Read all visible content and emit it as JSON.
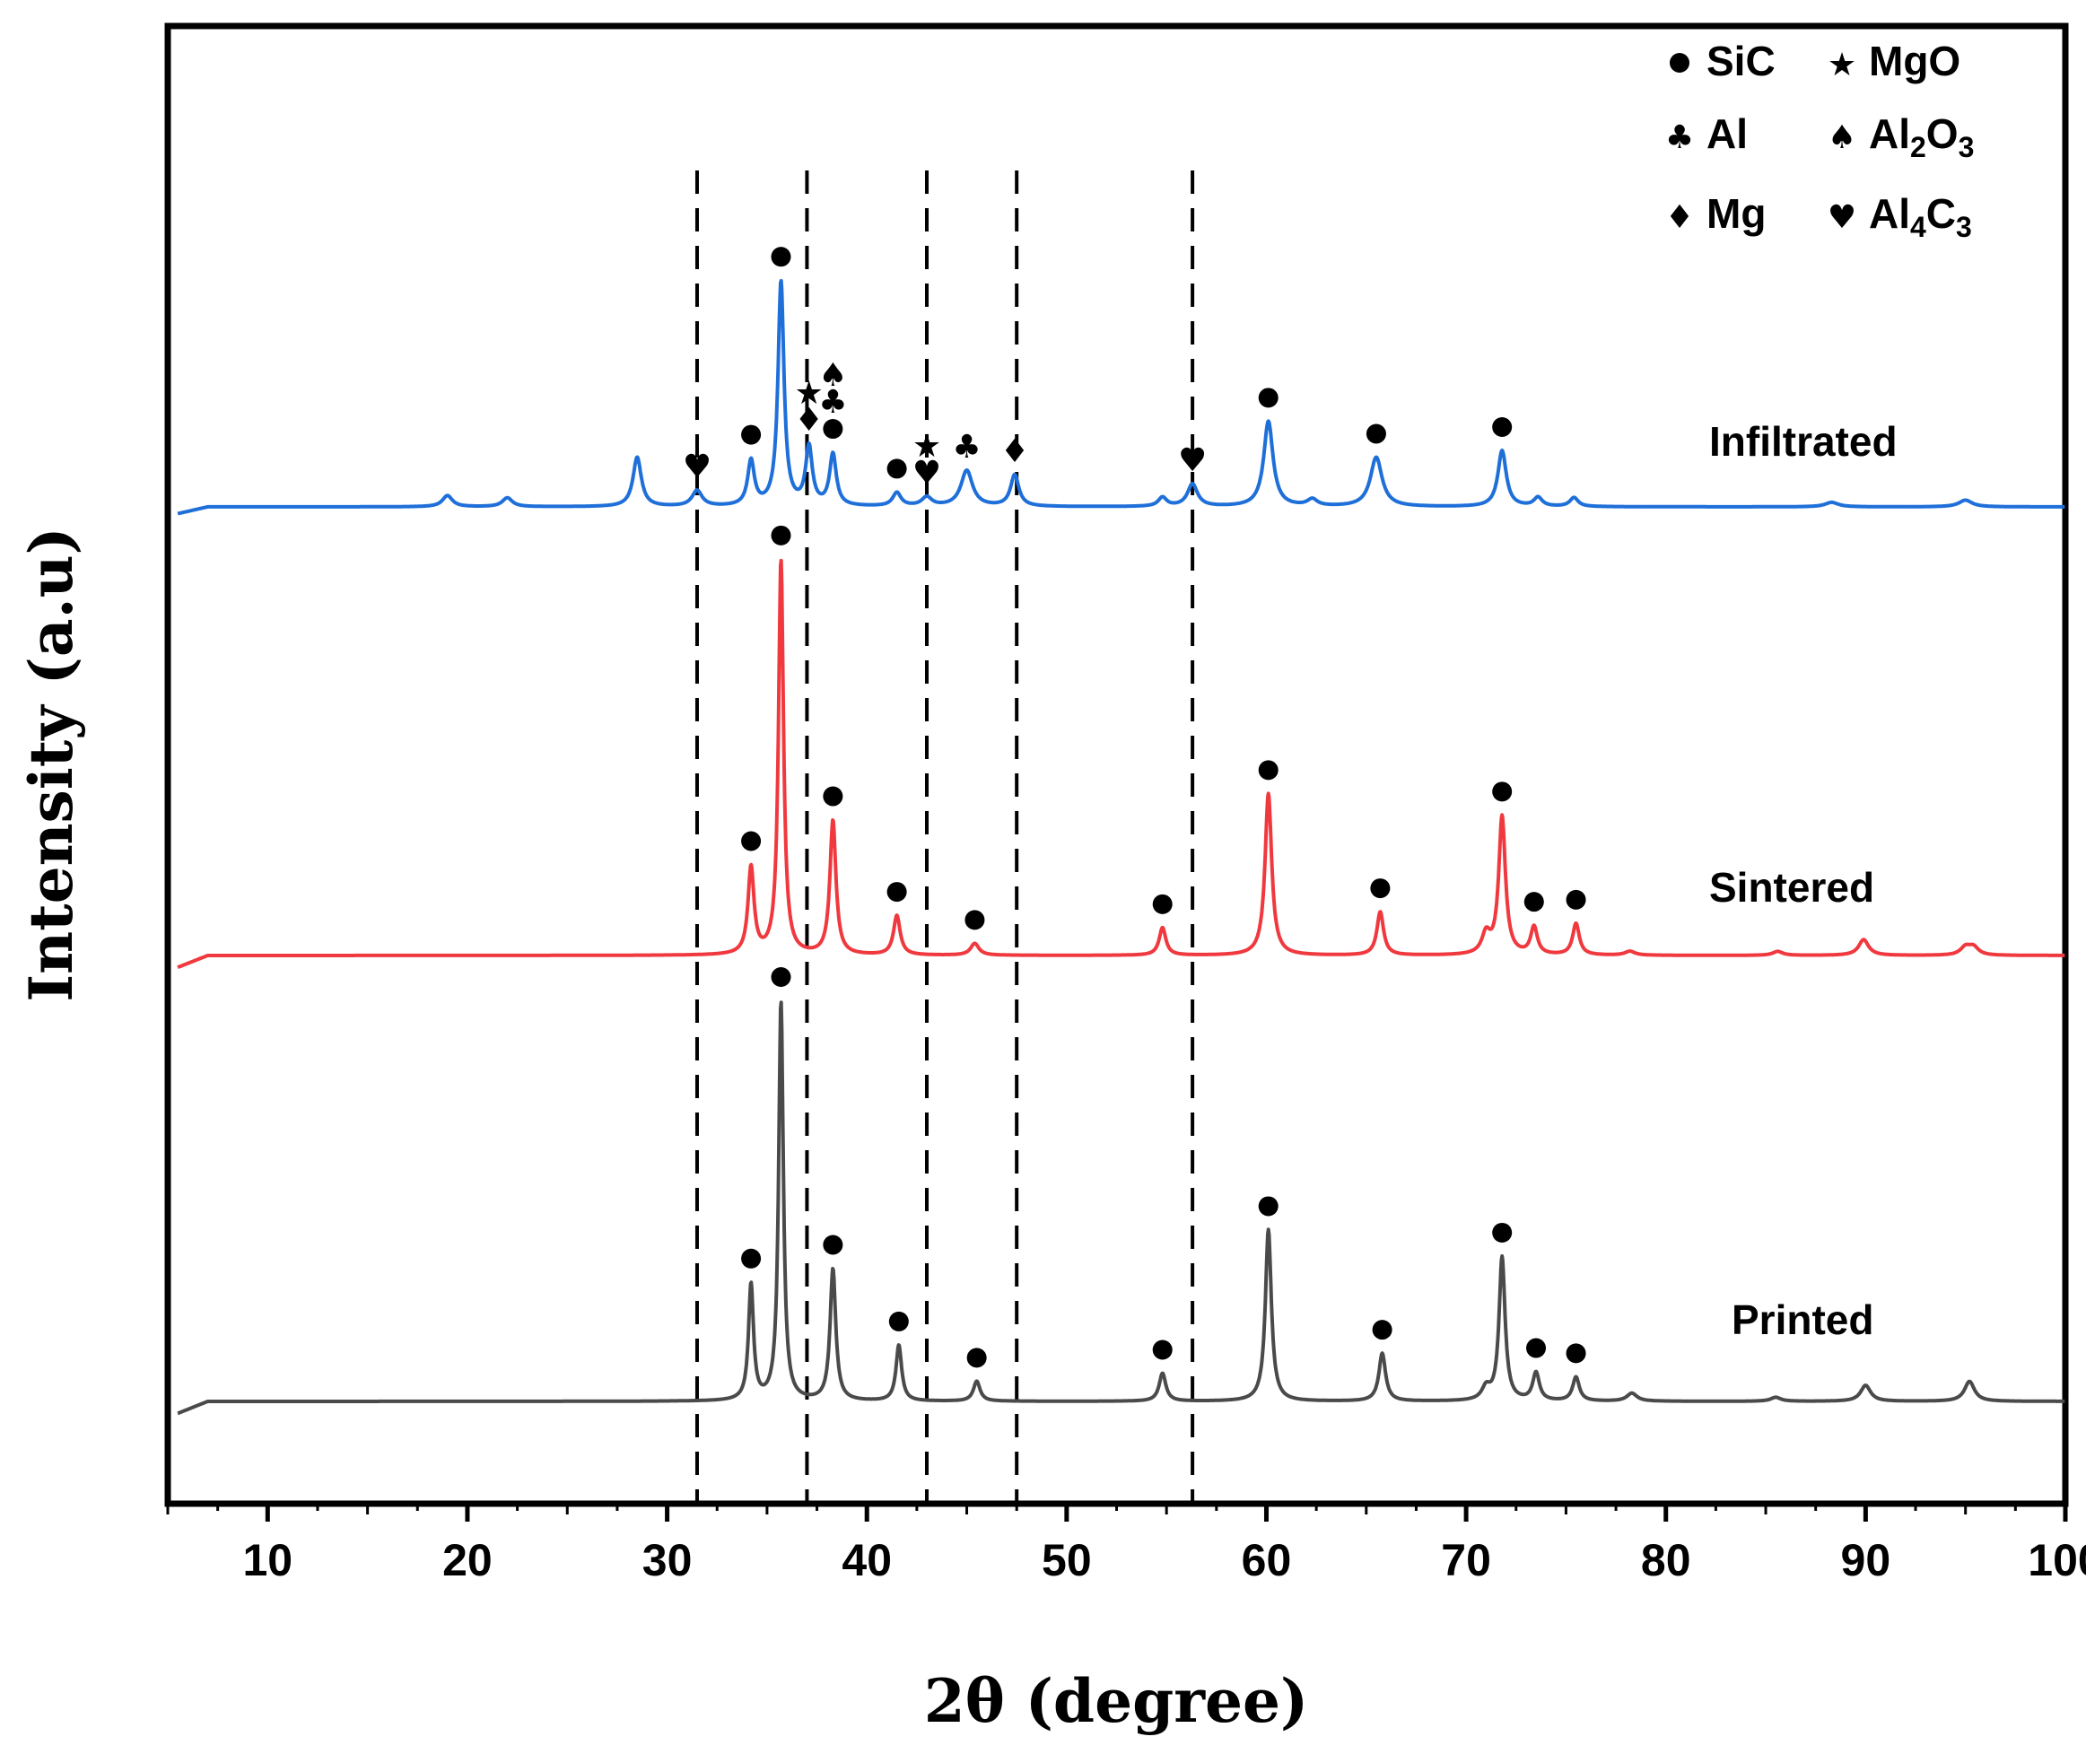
{
  "chart_data": {
    "type": "line",
    "xlabel": "2θ (degree)",
    "ylabel": "Intensity (a.u)",
    "xlim": [
      5,
      100
    ],
    "x_ticks": [
      10,
      20,
      30,
      40,
      50,
      60,
      70,
      80,
      90,
      100
    ],
    "grid": false,
    "legend_position": "top-right",
    "legend": [
      {
        "symbol": "●",
        "label": "SiC"
      },
      {
        "symbol": "★",
        "label": "MgO"
      },
      {
        "symbol": "♣",
        "label": "Al"
      },
      {
        "symbol": "♠",
        "label": "Al",
        "sub": "2",
        "label2": "O",
        "sub2": "3"
      },
      {
        "symbol": "♦",
        "label": "Mg"
      },
      {
        "symbol": "♥",
        "label": "Al",
        "sub": "4",
        "label2": "C",
        "sub2": "3"
      }
    ],
    "reference_lines_x": [
      31.5,
      37.0,
      43.0,
      47.5,
      56.3
    ],
    "series": [
      {
        "name": "Infiltrated",
        "color": "#1f6fd9",
        "baseline": 0.0,
        "peaks": [
          [
            19.0,
            0.05,
            0.3
          ],
          [
            22.0,
            0.04,
            0.3
          ],
          [
            28.5,
            0.22,
            0.25
          ],
          [
            31.5,
            0.07,
            0.3
          ],
          [
            34.2,
            0.2,
            0.2
          ],
          [
            35.7,
            1.0,
            0.18
          ],
          [
            37.1,
            0.26,
            0.2
          ],
          [
            38.3,
            0.23,
            0.2
          ],
          [
            41.5,
            0.06,
            0.25
          ],
          [
            43.0,
            0.04,
            0.3
          ],
          [
            45.0,
            0.16,
            0.35
          ],
          [
            47.4,
            0.14,
            0.25
          ],
          [
            54.8,
            0.04,
            0.25
          ],
          [
            56.3,
            0.1,
            0.3
          ],
          [
            60.1,
            0.38,
            0.28
          ],
          [
            62.3,
            0.03,
            0.3
          ],
          [
            65.5,
            0.22,
            0.35
          ],
          [
            71.8,
            0.25,
            0.25
          ],
          [
            73.6,
            0.04,
            0.25
          ],
          [
            75.4,
            0.04,
            0.25
          ],
          [
            88.3,
            0.02,
            0.4
          ],
          [
            95.0,
            0.03,
            0.4
          ]
        ],
        "markers": [
          {
            "x": 31.5,
            "symbols": "♥"
          },
          {
            "x": 34.2,
            "symbols": "●"
          },
          {
            "x": 35.7,
            "symbols": "●"
          },
          {
            "x": 37.1,
            "symbols": "★♦"
          },
          {
            "x": 38.3,
            "symbols": "♠♣●"
          },
          {
            "x": 41.5,
            "symbols": "●"
          },
          {
            "x": 43.0,
            "symbols": "★♥"
          },
          {
            "x": 45.0,
            "symbols": "♣"
          },
          {
            "x": 47.4,
            "symbols": "♦"
          },
          {
            "x": 56.3,
            "symbols": "♥"
          },
          {
            "x": 60.1,
            "symbols": "●"
          },
          {
            "x": 65.5,
            "symbols": "●"
          },
          {
            "x": 71.8,
            "symbols": "●"
          }
        ]
      },
      {
        "name": "Sintered",
        "color": "#f0393e",
        "baseline": 0.0,
        "peaks": [
          [
            34.2,
            0.22,
            0.18
          ],
          [
            35.7,
            1.0,
            0.15
          ],
          [
            38.3,
            0.34,
            0.18
          ],
          [
            41.5,
            0.1,
            0.2
          ],
          [
            45.4,
            0.03,
            0.25
          ],
          [
            54.8,
            0.07,
            0.2
          ],
          [
            60.1,
            0.41,
            0.2
          ],
          [
            65.7,
            0.11,
            0.2
          ],
          [
            71.0,
            0.05,
            0.25
          ],
          [
            71.8,
            0.35,
            0.2
          ],
          [
            73.4,
            0.07,
            0.2
          ],
          [
            75.5,
            0.08,
            0.2
          ],
          [
            78.2,
            0.01,
            0.3
          ],
          [
            85.6,
            0.01,
            0.3
          ],
          [
            89.9,
            0.04,
            0.3
          ],
          [
            95.0,
            0.02,
            0.3
          ],
          [
            95.4,
            0.02,
            0.3
          ]
        ],
        "markers": [
          {
            "x": 34.2,
            "symbols": "●"
          },
          {
            "x": 35.7,
            "symbols": "●"
          },
          {
            "x": 38.3,
            "symbols": "●"
          },
          {
            "x": 41.5,
            "symbols": "●"
          },
          {
            "x": 45.4,
            "symbols": "●"
          },
          {
            "x": 54.8,
            "symbols": "●"
          },
          {
            "x": 60.1,
            "symbols": "●"
          },
          {
            "x": 65.7,
            "symbols": "●"
          },
          {
            "x": 71.8,
            "symbols": "●"
          },
          {
            "x": 73.4,
            "symbols": "●"
          },
          {
            "x": 75.5,
            "symbols": "●"
          }
        ]
      },
      {
        "name": "Printed",
        "color": "#4a4a4a",
        "baseline": 0.0,
        "peaks": [
          [
            34.2,
            0.29,
            0.15
          ],
          [
            35.7,
            1.0,
            0.14
          ],
          [
            38.3,
            0.33,
            0.17
          ],
          [
            41.6,
            0.14,
            0.17
          ],
          [
            45.5,
            0.05,
            0.2
          ],
          [
            54.8,
            0.07,
            0.2
          ],
          [
            60.1,
            0.43,
            0.18
          ],
          [
            65.8,
            0.12,
            0.2
          ],
          [
            71.0,
            0.03,
            0.25
          ],
          [
            71.8,
            0.36,
            0.18
          ],
          [
            73.5,
            0.07,
            0.2
          ],
          [
            75.5,
            0.06,
            0.2
          ],
          [
            78.3,
            0.02,
            0.3
          ],
          [
            85.5,
            0.01,
            0.3
          ],
          [
            90.0,
            0.04,
            0.3
          ],
          [
            95.2,
            0.05,
            0.3
          ]
        ],
        "markers": [
          {
            "x": 34.2,
            "symbols": "●"
          },
          {
            "x": 35.7,
            "symbols": "●"
          },
          {
            "x": 38.3,
            "symbols": "●"
          },
          {
            "x": 41.6,
            "symbols": "●"
          },
          {
            "x": 45.5,
            "symbols": "●"
          },
          {
            "x": 54.8,
            "symbols": "●"
          },
          {
            "x": 60.1,
            "symbols": "●"
          },
          {
            "x": 65.8,
            "symbols": "●"
          },
          {
            "x": 71.8,
            "symbols": "●"
          },
          {
            "x": 73.5,
            "symbols": "●"
          },
          {
            "x": 75.5,
            "symbols": "●"
          }
        ]
      }
    ]
  }
}
